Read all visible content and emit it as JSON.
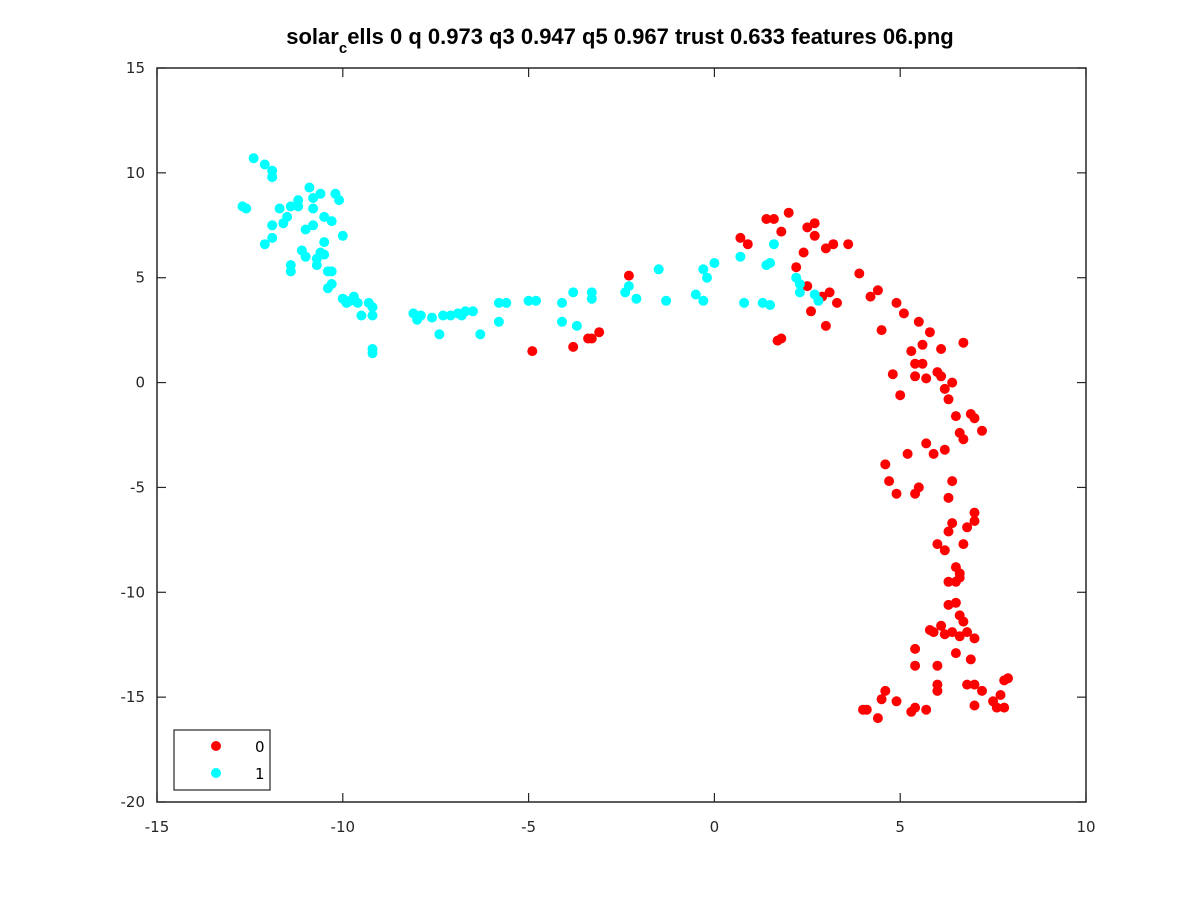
{
  "chart_data": {
    "type": "scatter",
    "title_parts": {
      "a": "solar",
      "b": "c",
      "c": "ells 0 q 0.973 q3 0.947 q5 0.967 trust 0.633 features 06.png"
    },
    "title": "solar_cells 0 q 0.973 q3 0.947 q5 0.967 trust 0.633 features 06.png",
    "xlabel": "",
    "ylabel": "",
    "xlim": [
      -15,
      10
    ],
    "ylim": [
      -20,
      15
    ],
    "xticks": [
      -15,
      -10,
      -5,
      0,
      5,
      10
    ],
    "yticks": [
      -20,
      -15,
      -10,
      -5,
      0,
      5,
      10,
      15
    ],
    "xtick_labels": [
      "-15",
      "-10",
      "-5",
      "0",
      "5",
      "10"
    ],
    "ytick_labels": [
      "-20",
      "-15",
      "-10",
      "-5",
      "0",
      "5",
      "10",
      "15"
    ],
    "grid": false,
    "legend_position": "bottom-left",
    "series": [
      {
        "name": "0",
        "color": "#ff0000",
        "points": [
          [
            -4.9,
            1.5
          ],
          [
            -3.8,
            1.7
          ],
          [
            -3.4,
            2.1
          ],
          [
            -3.3,
            2.1
          ],
          [
            -3.1,
            2.4
          ],
          [
            -2.3,
            5.1
          ],
          [
            0.7,
            6.9
          ],
          [
            0.9,
            6.6
          ],
          [
            1.4,
            7.8
          ],
          [
            1.6,
            7.8
          ],
          [
            1.7,
            2.0
          ],
          [
            1.8,
            2.1
          ],
          [
            1.8,
            7.2
          ],
          [
            2.0,
            8.1
          ],
          [
            2.2,
            5.5
          ],
          [
            2.4,
            6.2
          ],
          [
            2.5,
            4.6
          ],
          [
            2.5,
            7.4
          ],
          [
            2.6,
            3.4
          ],
          [
            2.7,
            7.6
          ],
          [
            2.7,
            7.0
          ],
          [
            2.9,
            4.1
          ],
          [
            3.0,
            6.4
          ],
          [
            3.0,
            2.7
          ],
          [
            3.1,
            4.3
          ],
          [
            3.2,
            6.6
          ],
          [
            3.3,
            3.8
          ],
          [
            3.6,
            6.6
          ],
          [
            3.9,
            5.2
          ],
          [
            4.2,
            4.1
          ],
          [
            4.4,
            4.4
          ],
          [
            4.5,
            2.5
          ],
          [
            4.6,
            -3.9
          ],
          [
            4.8,
            0.4
          ],
          [
            4.7,
            -4.7
          ],
          [
            4.9,
            3.8
          ],
          [
            4.9,
            -5.3
          ],
          [
            5.0,
            -0.6
          ],
          [
            5.1,
            3.3
          ],
          [
            5.2,
            -3.4
          ],
          [
            5.3,
            1.5
          ],
          [
            5.4,
            0.9
          ],
          [
            5.4,
            0.3
          ],
          [
            5.4,
            -5.3
          ],
          [
            5.5,
            -5.0
          ],
          [
            5.5,
            2.9
          ],
          [
            5.6,
            1.8
          ],
          [
            5.6,
            0.9
          ],
          [
            5.7,
            0.2
          ],
          [
            5.7,
            -2.9
          ],
          [
            5.8,
            2.4
          ],
          [
            5.9,
            -3.4
          ],
          [
            6.0,
            0.5
          ],
          [
            6.1,
            0.3
          ],
          [
            6.1,
            1.6
          ],
          [
            6.2,
            -0.3
          ],
          [
            6.2,
            -3.2
          ],
          [
            6.3,
            -0.8
          ],
          [
            6.4,
            0.0
          ],
          [
            6.5,
            -1.6
          ],
          [
            6.6,
            -2.4
          ],
          [
            6.7,
            1.9
          ],
          [
            6.7,
            -2.7
          ],
          [
            6.9,
            -1.5
          ],
          [
            7.0,
            -1.7
          ],
          [
            7.2,
            -2.3
          ],
          [
            6.4,
            -4.7
          ],
          [
            6.3,
            -5.5
          ],
          [
            6.0,
            -7.7
          ],
          [
            6.2,
            -8.0
          ],
          [
            6.3,
            -7.1
          ],
          [
            6.4,
            -6.7
          ],
          [
            6.5,
            -8.8
          ],
          [
            6.6,
            -9.1
          ],
          [
            6.7,
            -7.7
          ],
          [
            6.8,
            -6.9
          ],
          [
            7.0,
            -6.6
          ],
          [
            7.0,
            -6.2
          ],
          [
            6.3,
            -9.5
          ],
          [
            6.5,
            -9.5
          ],
          [
            6.6,
            -9.3
          ],
          [
            6.3,
            -10.6
          ],
          [
            6.5,
            -10.5
          ],
          [
            6.6,
            -11.1
          ],
          [
            6.7,
            -11.4
          ],
          [
            5.8,
            -11.8
          ],
          [
            5.9,
            -11.9
          ],
          [
            6.1,
            -11.6
          ],
          [
            6.2,
            -12.0
          ],
          [
            6.4,
            -11.9
          ],
          [
            6.6,
            -12.1
          ],
          [
            6.8,
            -11.9
          ],
          [
            7.0,
            -12.2
          ],
          [
            5.4,
            -12.7
          ],
          [
            6.5,
            -12.9
          ],
          [
            5.4,
            -13.5
          ],
          [
            6.0,
            -13.5
          ],
          [
            6.9,
            -13.2
          ],
          [
            4.0,
            -15.6
          ],
          [
            4.1,
            -15.6
          ],
          [
            4.4,
            -16.0
          ],
          [
            4.5,
            -15.1
          ],
          [
            4.6,
            -14.7
          ],
          [
            4.9,
            -15.2
          ],
          [
            5.3,
            -15.7
          ],
          [
            5.4,
            -15.5
          ],
          [
            5.7,
            -15.6
          ],
          [
            6.0,
            -14.7
          ],
          [
            6.0,
            -14.4
          ],
          [
            6.8,
            -14.4
          ],
          [
            7.0,
            -14.4
          ],
          [
            7.0,
            -15.4
          ],
          [
            7.2,
            -14.7
          ],
          [
            7.5,
            -15.2
          ],
          [
            7.6,
            -15.5
          ],
          [
            7.7,
            -14.9
          ],
          [
            7.8,
            -15.5
          ],
          [
            7.8,
            -14.2
          ],
          [
            7.9,
            -14.1
          ]
        ]
      },
      {
        "name": "1",
        "color": "#00ffff",
        "points": [
          [
            -12.7,
            8.4
          ],
          [
            -12.6,
            8.3
          ],
          [
            -12.4,
            10.7
          ],
          [
            -12.1,
            10.4
          ],
          [
            -11.9,
            10.1
          ],
          [
            -11.9,
            9.8
          ],
          [
            -12.1,
            6.6
          ],
          [
            -11.9,
            6.9
          ],
          [
            -11.9,
            7.5
          ],
          [
            -11.7,
            8.3
          ],
          [
            -11.6,
            7.6
          ],
          [
            -11.5,
            7.9
          ],
          [
            -11.4,
            8.4
          ],
          [
            -11.4,
            5.6
          ],
          [
            -11.4,
            5.3
          ],
          [
            -11.2,
            8.4
          ],
          [
            -11.2,
            8.7
          ],
          [
            -11.1,
            6.3
          ],
          [
            -11.0,
            6.0
          ],
          [
            -11.0,
            7.3
          ],
          [
            -10.9,
            9.3
          ],
          [
            -10.8,
            7.5
          ],
          [
            -10.8,
            8.3
          ],
          [
            -10.8,
            8.8
          ],
          [
            -10.7,
            5.9
          ],
          [
            -10.7,
            5.6
          ],
          [
            -10.6,
            6.2
          ],
          [
            -10.6,
            9.0
          ],
          [
            -10.5,
            7.9
          ],
          [
            -10.5,
            6.7
          ],
          [
            -10.5,
            6.1
          ],
          [
            -10.4,
            5.3
          ],
          [
            -10.4,
            4.5
          ],
          [
            -10.3,
            4.7
          ],
          [
            -10.3,
            5.3
          ],
          [
            -10.3,
            7.7
          ],
          [
            -10.2,
            9.0
          ],
          [
            -10.1,
            8.7
          ],
          [
            -10.0,
            4.0
          ],
          [
            -10.0,
            7.0
          ],
          [
            -9.9,
            3.8
          ],
          [
            -9.8,
            3.9
          ],
          [
            -9.7,
            4.1
          ],
          [
            -9.6,
            3.8
          ],
          [
            -9.5,
            3.2
          ],
          [
            -9.3,
            3.8
          ],
          [
            -9.2,
            3.2
          ],
          [
            -9.2,
            3.6
          ],
          [
            -9.2,
            1.6
          ],
          [
            -9.2,
            1.4
          ],
          [
            -8.1,
            3.3
          ],
          [
            -8.0,
            3.0
          ],
          [
            -7.9,
            3.2
          ],
          [
            -7.6,
            3.1
          ],
          [
            -7.4,
            2.3
          ],
          [
            -7.3,
            3.2
          ],
          [
            -7.1,
            3.2
          ],
          [
            -6.9,
            3.3
          ],
          [
            -6.8,
            3.2
          ],
          [
            -6.7,
            3.4
          ],
          [
            -6.5,
            3.4
          ],
          [
            -6.3,
            2.3
          ],
          [
            -5.8,
            2.9
          ],
          [
            -5.8,
            3.8
          ],
          [
            -5.6,
            3.8
          ],
          [
            -5.0,
            3.9
          ],
          [
            -4.8,
            3.9
          ],
          [
            -4.1,
            3.8
          ],
          [
            -4.1,
            2.9
          ],
          [
            -3.8,
            4.3
          ],
          [
            -3.7,
            2.7
          ],
          [
            -3.3,
            4.3
          ],
          [
            -3.3,
            4.0
          ],
          [
            -2.4,
            4.3
          ],
          [
            -2.3,
            4.6
          ],
          [
            -2.1,
            4.0
          ],
          [
            -1.5,
            5.4
          ],
          [
            -1.3,
            3.9
          ],
          [
            -0.5,
            4.2
          ],
          [
            -0.3,
            5.4
          ],
          [
            -0.3,
            3.9
          ],
          [
            -0.2,
            5.0
          ],
          [
            0.0,
            5.7
          ],
          [
            0.7,
            6.0
          ],
          [
            0.8,
            3.8
          ],
          [
            1.3,
            3.8
          ],
          [
            1.4,
            5.6
          ],
          [
            1.5,
            3.7
          ],
          [
            1.5,
            5.7
          ],
          [
            1.6,
            6.6
          ],
          [
            2.2,
            5.0
          ],
          [
            2.3,
            4.3
          ],
          [
            2.3,
            4.7
          ],
          [
            2.7,
            4.2
          ],
          [
            2.8,
            3.9
          ]
        ]
      }
    ]
  }
}
